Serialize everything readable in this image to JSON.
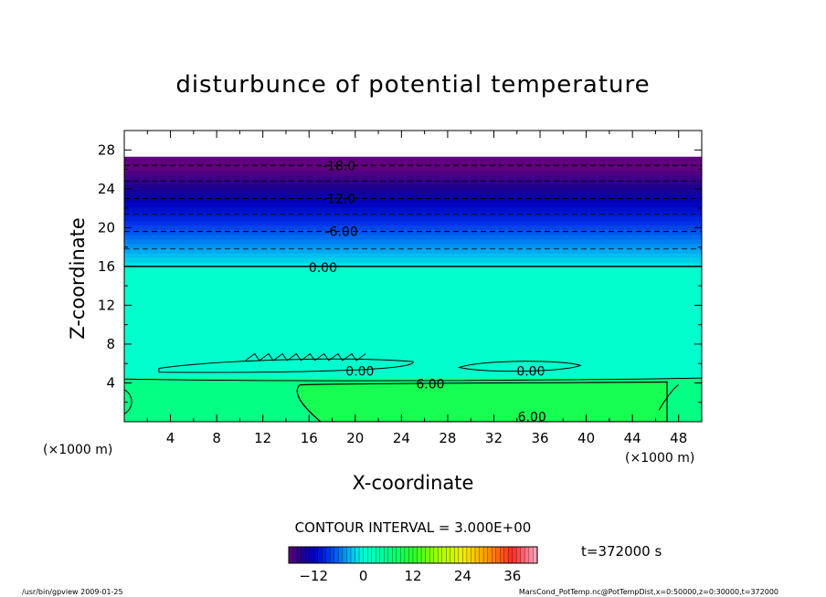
{
  "chart_data": {
    "type": "heatmap",
    "title": "disturbunce of potential temperature",
    "xlabel": "X-coordinate",
    "ylabel": "Z-coordinate",
    "x_unit_left": "(×1000 m)",
    "x_unit_right": "(×1000 m)",
    "xlim": [
      0,
      50
    ],
    "ylim": [
      0,
      30
    ],
    "x_ticks": [
      4,
      8,
      12,
      16,
      20,
      24,
      28,
      32,
      36,
      40,
      44,
      48
    ],
    "y_ticks": [
      4,
      8,
      12,
      16,
      20,
      24,
      28
    ],
    "domain_top": 27.3,
    "contour_interval_text": "CONTOUR INTERVAL = 3.000E+00",
    "time_text": "t=372000 s",
    "contour_labels": [
      {
        "text": "-18.0",
        "x": 18.6,
        "z": 26.4
      },
      {
        "text": "-12.0",
        "x": 18.6,
        "z": 23.0
      },
      {
        "text": "-6.00",
        "x": 18.8,
        "z": 19.6
      },
      {
        "text": "0.00",
        "x": 17.2,
        "z": 15.9
      },
      {
        "text": "0.00",
        "x": 20.4,
        "z": 5.2
      },
      {
        "text": "6.00",
        "x": 26.5,
        "z": 3.9
      },
      {
        "text": "0.00",
        "x": 35.2,
        "z": 5.2
      },
      {
        "text": "6.00",
        "x": 35.3,
        "z": 0.5
      }
    ],
    "dashed_levels": [
      26.4,
      24.8,
      23.0,
      21.4,
      19.6,
      17.8
    ],
    "zero_level": 16.0,
    "colorbar": {
      "min": -18,
      "max": 42,
      "ticks": [
        -12,
        0,
        12,
        24,
        36
      ]
    }
  },
  "footer": {
    "left": "/usr/bin/gpview   2009-01-25",
    "right": "MarsCond_PotTemp.nc@PotTempDist,x=0:50000,z=0:30000,t=372000"
  }
}
